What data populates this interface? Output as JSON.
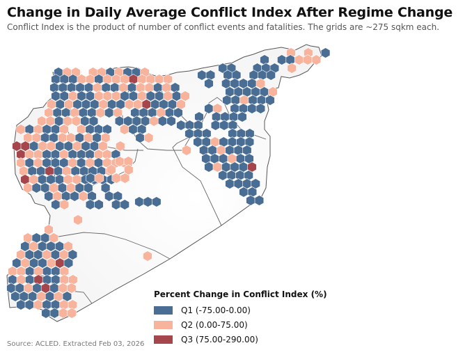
{
  "title": "Change in Daily Average Conflict Index After Regime Change",
  "subtitle": "Conflict Index is the product of number of conflict events and fatalities. The grids are ~275 sqkm each.",
  "source": "Source: ACLED. Extracted Feb 03, 2026",
  "legend": {
    "title": "Percent Change in Conflict Index (%)",
    "items": [
      {
        "label": "Q1 (-75.00-0.00)",
        "color": "#4a6e93"
      },
      {
        "label": "Q2 (0.00-75.00)",
        "color": "#f8b39d"
      },
      {
        "label": "Q3 (75.00-290.00)",
        "color": "#a4464b"
      }
    ]
  },
  "colors": {
    "q1": "#4a6e93",
    "q2": "#f8b39d",
    "q3": "#a4464b",
    "border": "#555555",
    "land": "#fafafa"
  }
}
